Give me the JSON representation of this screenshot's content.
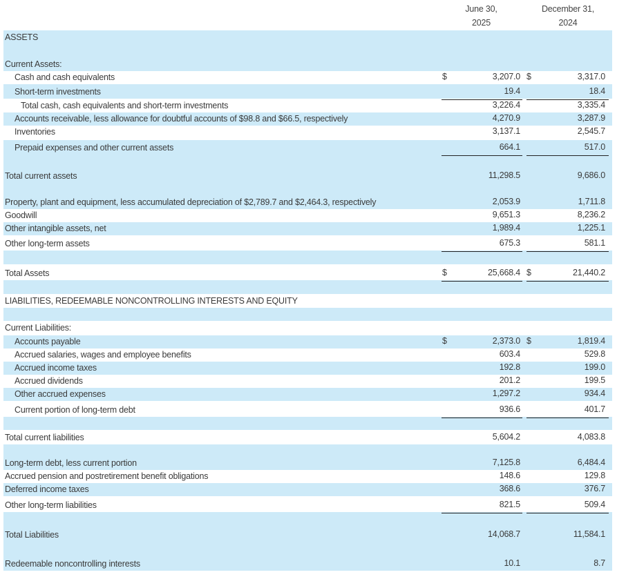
{
  "header": {
    "col1_line1": "June 30,",
    "col1_line2": "2025",
    "col2_line1": "December 31,",
    "col2_line2": "2024"
  },
  "rows": [
    {
      "label": "ASSETS",
      "v1": "",
      "v2": "",
      "c1": "",
      "c2": ""
    },
    {
      "label": "Current Assets:",
      "v1": "",
      "v2": "",
      "c1": "",
      "c2": ""
    },
    {
      "label": "Cash and cash equivalents",
      "v1": "3,207.0",
      "v2": "3,317.0",
      "c1": "$",
      "c2": "$"
    },
    {
      "label": "Short-term investments",
      "v1": "19.4",
      "v2": "18.4",
      "c1": "",
      "c2": ""
    },
    {
      "label": "Total cash, cash equivalents and short-term investments",
      "v1": "3,226.4",
      "v2": "3,335.4",
      "c1": "",
      "c2": ""
    },
    {
      "label": "Accounts receivable, less allowance for doubtful accounts of $98.8 and $66.5, respectively",
      "v1": "4,270.9",
      "v2": "3,287.9",
      "c1": "",
      "c2": ""
    },
    {
      "label": "Inventories",
      "v1": "3,137.1",
      "v2": "2,545.7",
      "c1": "",
      "c2": ""
    },
    {
      "label": "Prepaid expenses and other current assets",
      "v1": "664.1",
      "v2": "517.0",
      "c1": "",
      "c2": ""
    },
    {
      "label": "Total current assets",
      "v1": "11,298.5",
      "v2": "9,686.0",
      "c1": "",
      "c2": ""
    },
    {
      "label": "Property, plant and equipment, less accumulated depreciation of $2,789.7 and $2,464.3, respectively",
      "v1": "2,053.9",
      "v2": "1,711.8",
      "c1": "",
      "c2": ""
    },
    {
      "label": "Goodwill",
      "v1": "9,651.3",
      "v2": "8,236.2",
      "c1": "",
      "c2": ""
    },
    {
      "label": "Other intangible assets, net",
      "v1": "1,989.4",
      "v2": "1,225.1",
      "c1": "",
      "c2": ""
    },
    {
      "label": "Other long-term assets",
      "v1": "675.3",
      "v2": "581.1",
      "c1": "",
      "c2": ""
    },
    {
      "label": "Total Assets",
      "v1": "25,668.4",
      "v2": "21,440.2",
      "c1": "$",
      "c2": "$"
    },
    {
      "label": "LIABILITIES, REDEEMABLE NONCONTROLLING INTERESTS AND EQUITY",
      "v1": "",
      "v2": "",
      "c1": "",
      "c2": ""
    },
    {
      "label": "Current Liabilities:",
      "v1": "",
      "v2": "",
      "c1": "",
      "c2": ""
    },
    {
      "label": "Accounts payable",
      "v1": "2,373.0",
      "v2": "1,819.4",
      "c1": "$",
      "c2": "$"
    },
    {
      "label": "Accrued salaries, wages and employee benefits",
      "v1": "603.4",
      "v2": "529.8",
      "c1": "",
      "c2": ""
    },
    {
      "label": "Accrued income taxes",
      "v1": "192.8",
      "v2": "199.0",
      "c1": "",
      "c2": ""
    },
    {
      "label": "Accrued dividends",
      "v1": "201.2",
      "v2": "199.5",
      "c1": "",
      "c2": ""
    },
    {
      "label": "Other accrued expenses",
      "v1": "1,297.2",
      "v2": "934.4",
      "c1": "",
      "c2": ""
    },
    {
      "label": "Current portion of long-term debt",
      "v1": "936.6",
      "v2": "401.7",
      "c1": "",
      "c2": ""
    },
    {
      "label": "Total current liabilities",
      "v1": "5,604.2",
      "v2": "4,083.8",
      "c1": "",
      "c2": ""
    },
    {
      "label": "Long-term debt, less current portion",
      "v1": "7,125.8",
      "v2": "6,484.4",
      "c1": "",
      "c2": ""
    },
    {
      "label": "Accrued pension and postretirement benefit obligations",
      "v1": "148.6",
      "v2": "129.8",
      "c1": "",
      "c2": ""
    },
    {
      "label": "Deferred income taxes",
      "v1": "368.6",
      "v2": "376.7",
      "c1": "",
      "c2": ""
    },
    {
      "label": "Other long-term liabilities",
      "v1": "821.5",
      "v2": "509.4",
      "c1": "",
      "c2": ""
    },
    {
      "label": "Total Liabilities",
      "v1": "14,068.7",
      "v2": "11,584.1",
      "c1": "",
      "c2": ""
    },
    {
      "label": "Redeemable noncontrolling interests",
      "v1": "10.1",
      "v2": "8.7",
      "c1": "",
      "c2": ""
    }
  ]
}
